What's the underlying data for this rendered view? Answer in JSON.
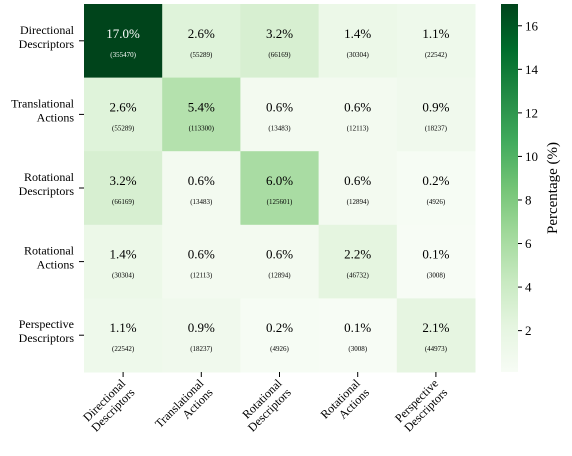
{
  "chart_data": {
    "type": "heatmap",
    "row_labels": [
      [
        "Directional",
        "Descriptors"
      ],
      [
        "Translational",
        "Actions"
      ],
      [
        "Rotational",
        "Descriptors"
      ],
      [
        "Rotational",
        "Actions"
      ],
      [
        "Perspective",
        "Descriptors"
      ]
    ],
    "col_labels": [
      [
        "Directional",
        "Descriptors"
      ],
      [
        "Translational",
        "Actions"
      ],
      [
        "Rotational",
        "Descriptors"
      ],
      [
        "Rotational",
        "Actions"
      ],
      [
        "Perspective",
        "Descriptors"
      ]
    ],
    "percent_values": [
      [
        17.0,
        2.6,
        3.2,
        1.4,
        1.1
      ],
      [
        2.6,
        5.4,
        0.6,
        0.6,
        0.9
      ],
      [
        3.2,
        0.6,
        6.0,
        0.6,
        0.2
      ],
      [
        1.4,
        0.6,
        0.6,
        2.2,
        0.1
      ],
      [
        1.1,
        0.9,
        0.2,
        0.1,
        2.1
      ]
    ],
    "percent_labels": [
      [
        "17.0%",
        "2.6%",
        "3.2%",
        "1.4%",
        "1.1%"
      ],
      [
        "2.6%",
        "5.4%",
        "0.6%",
        "0.6%",
        "0.9%"
      ],
      [
        "3.2%",
        "0.6%",
        "6.0%",
        "0.6%",
        "0.2%"
      ],
      [
        "1.4%",
        "0.6%",
        "0.6%",
        "2.2%",
        "0.1%"
      ],
      [
        "1.1%",
        "0.9%",
        "0.2%",
        "0.1%",
        "2.1%"
      ]
    ],
    "count_labels": [
      [
        "(355470)",
        "(55289)",
        "(66169)",
        "(30304)",
        "(22542)"
      ],
      [
        "(55289)",
        "(113300)",
        "(13483)",
        "(12113)",
        "(18237)"
      ],
      [
        "(66169)",
        "(13483)",
        "(125601)",
        "(12894)",
        "(4926)"
      ],
      [
        "(30304)",
        "(12113)",
        "(12894)",
        "(46732)",
        "(3008)"
      ],
      [
        "(22542)",
        "(18237)",
        "(4926)",
        "(3008)",
        "(44973)"
      ]
    ],
    "colorbar": {
      "label": "Percentage (%)",
      "ticks": [
        "2",
        "4",
        "6",
        "8",
        "10",
        "12",
        "14",
        "16"
      ],
      "tick_values": [
        2,
        4,
        6,
        8,
        10,
        12,
        14,
        16
      ],
      "range": [
        0.1,
        17.0
      ],
      "colormap": "Greens",
      "colors": [
        "#f7fcf5",
        "#e5f5e0",
        "#c7e9c0",
        "#a1d99b",
        "#74c476",
        "#41ab5d",
        "#238b45",
        "#006d2c",
        "#00441b"
      ]
    }
  }
}
